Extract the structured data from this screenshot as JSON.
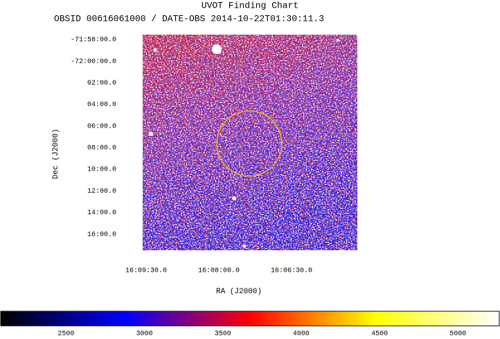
{
  "chart_data": {
    "type": "image",
    "title": "UVOT Finding Chart",
    "subtitle": "OBSID 00616061000 / DATE-OBS 2014-10-22T01:30:11.3",
    "xlabel": "RA (J2000)",
    "ylabel": "Dec (J2000)",
    "xlim": [
      58174.3,
      57908.6
    ],
    "xticks": [
      {
        "value": 58170,
        "label": "16:09:30.0"
      },
      {
        "value": 58080,
        "label": "16:08:00.0"
      },
      {
        "value": 57990,
        "label": "16:06:30.0"
      }
    ],
    "ylim": [
      -4317.55,
      -4337.5
    ],
    "yticks": [
      {
        "value": -4318,
        "label": "-71:58:00.0"
      },
      {
        "value": -4320,
        "label": "-72:00:00.0"
      },
      {
        "value": -4322,
        "label": "02:00.0"
      },
      {
        "value": -4324,
        "label": "04:00.0"
      },
      {
        "value": -4326,
        "label": "06:00.0"
      },
      {
        "value": -4328,
        "label": "08:00.0"
      },
      {
        "value": -4330,
        "label": "10:00.0"
      },
      {
        "value": -4332,
        "label": "12:00.0"
      },
      {
        "value": -4334,
        "label": "14:00.0"
      },
      {
        "value": -4336,
        "label": "16:00.0"
      }
    ],
    "colormap": [
      "#000000",
      "#0000ff",
      "#ff0000",
      "#ffff00",
      "#ffffff"
    ],
    "clim": [
      2083,
      5264
    ],
    "colorbar_ticks": [
      2500,
      3000,
      3500,
      4000,
      4500,
      5000
    ]
  }
}
